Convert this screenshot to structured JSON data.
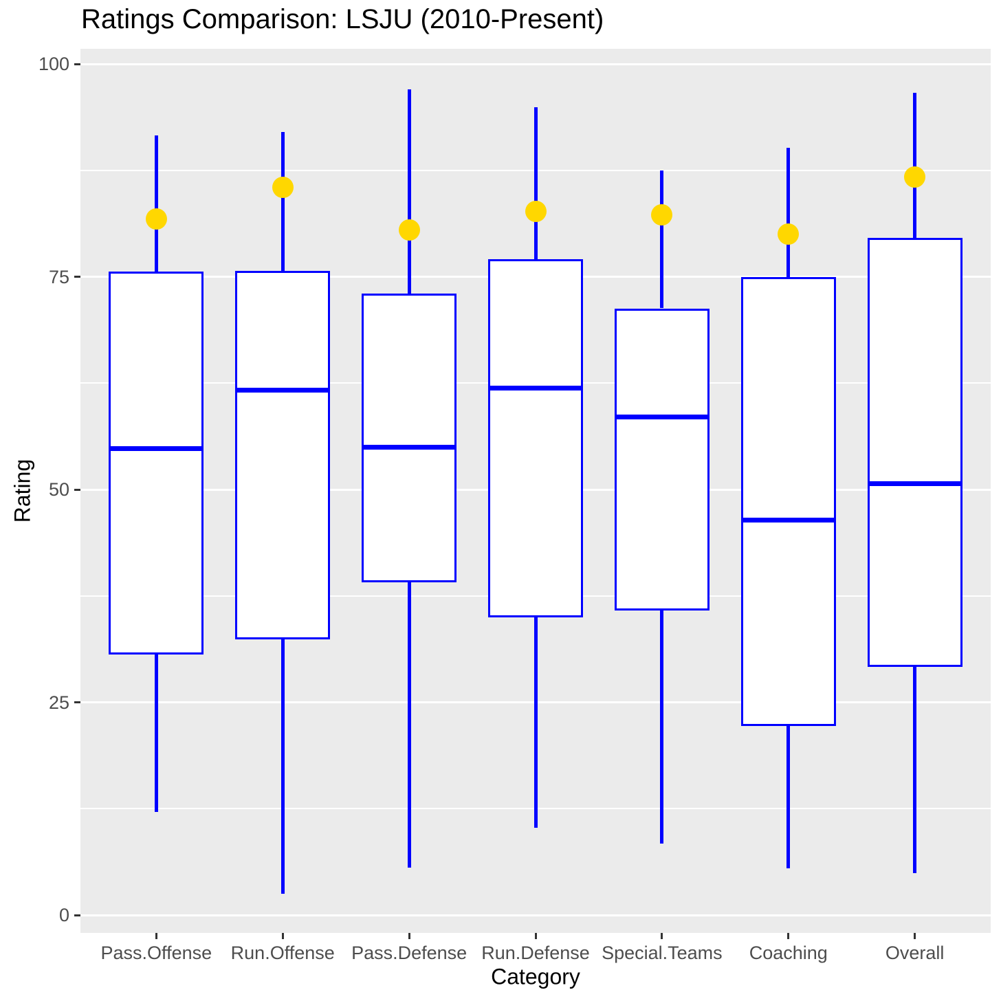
{
  "chart_data": {
    "type": "boxplot",
    "title": "Ratings Comparison: LSJU (2010-Present)",
    "xlabel": "Category",
    "ylabel": "Rating",
    "ylim": [
      0,
      100
    ],
    "y_ticks": [
      0,
      25,
      50,
      75,
      100
    ],
    "y_minor_gridlines": [
      12.5,
      37.5,
      62.5,
      87.5
    ],
    "grid": "major and minor horizontal gridlines, white on gray panel",
    "legend_position": "none",
    "categories": [
      "Pass.Offense",
      "Run.Offense",
      "Pass.Defense",
      "Run.Defense",
      "Special.Teams",
      "Coaching",
      "Overall"
    ],
    "series": [
      {
        "category": "Pass.Offense",
        "whisker_low": 12.1,
        "q1": 30.6,
        "median": 54.8,
        "q3": 75.6,
        "whisker_high": 91.6,
        "mean_point": 81.8
      },
      {
        "category": "Run.Offense",
        "whisker_low": 2.5,
        "q1": 32.4,
        "median": 61.7,
        "q3": 75.7,
        "whisker_high": 92.0,
        "mean_point": 85.5
      },
      {
        "category": "Pass.Defense",
        "whisker_low": 5.6,
        "q1": 39.1,
        "median": 55.0,
        "q3": 73.0,
        "whisker_high": 97.0,
        "mean_point": 80.5
      },
      {
        "category": "Run.Defense",
        "whisker_low": 10.3,
        "q1": 35.0,
        "median": 61.9,
        "q3": 77.1,
        "whisker_high": 94.9,
        "mean_point": 82.7
      },
      {
        "category": "Special.Teams",
        "whisker_low": 8.4,
        "q1": 35.8,
        "median": 58.5,
        "q3": 71.3,
        "whisker_high": 87.5,
        "mean_point": 82.3
      },
      {
        "category": "Coaching",
        "whisker_low": 5.5,
        "q1": 22.2,
        "median": 46.4,
        "q3": 75.0,
        "whisker_high": 90.2,
        "mean_point": 80.0
      },
      {
        "category": "Overall",
        "whisker_low": 4.9,
        "q1": 29.2,
        "median": 50.7,
        "q3": 79.6,
        "whisker_high": 96.6,
        "mean_point": 86.7
      }
    ],
    "colors": {
      "box_border": "#0000FF",
      "box_fill": "#FFFFFF",
      "median_line": "#0000FF",
      "whisker": "#0000FF",
      "mean_point": "#FFD700",
      "panel_background": "#EBEBEB",
      "gridline": "#FFFFFF",
      "tick_label": "#4D4D4D",
      "title_text": "#000000"
    }
  }
}
